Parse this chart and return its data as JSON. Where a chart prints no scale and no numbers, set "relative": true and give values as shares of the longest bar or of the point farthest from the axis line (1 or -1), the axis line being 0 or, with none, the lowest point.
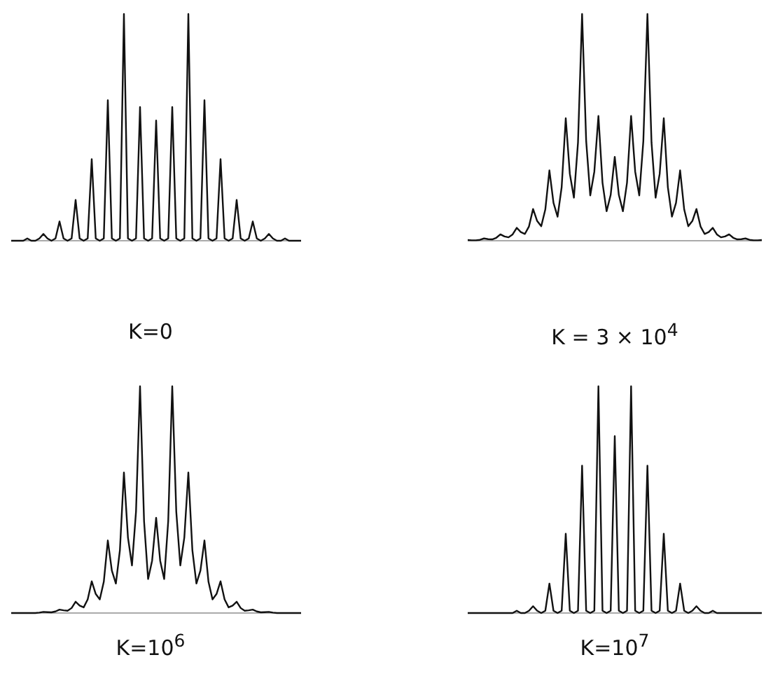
{
  "chart_data": [
    {
      "type": "line",
      "title": "K=0",
      "relative": true,
      "categories": [
        null,
        null,
        null,
        null,
        null,
        null,
        null,
        null,
        null,
        null,
        null,
        null,
        null,
        null,
        null,
        null,
        null,
        null,
        null,
        null,
        null,
        null,
        null,
        null,
        null,
        null,
        null,
        null,
        null,
        null,
        null,
        null,
        null,
        null,
        null,
        null,
        null,
        null,
        null,
        null,
        null,
        null,
        null,
        null,
        null,
        null,
        null,
        null,
        null,
        null,
        null,
        null,
        null,
        null,
        null,
        null,
        null,
        null,
        null,
        null,
        null,
        null,
        null,
        null,
        null,
        null,
        null,
        null,
        null,
        null,
        null,
        null,
        null
      ],
      "series": [
        {
          "color": "#111111",
          "values": [
            0,
            0,
            0,
            0,
            0.01,
            0,
            0,
            0.01,
            0.03,
            0.01,
            0,
            0.01,
            0.085,
            0.01,
            0,
            0.01,
            0.18,
            0.01,
            0,
            0.01,
            0.36,
            0.01,
            0,
            0.01,
            0.62,
            0.01,
            0,
            0.01,
            1,
            0.01,
            0,
            0.01,
            0.59,
            0.01,
            0,
            0.01,
            0.53,
            0.01,
            0,
            0.01,
            0.59,
            0.01,
            0,
            0.01,
            1,
            0.01,
            0,
            0.01,
            0.62,
            0.01,
            0,
            0.01,
            0.36,
            0.01,
            0,
            0.01,
            0.18,
            0.01,
            0,
            0.01,
            0.085,
            0.01,
            0,
            0.01,
            0.03,
            0.01,
            0,
            0,
            0.01,
            0,
            0,
            0,
            0
          ]
        }
      ]
    },
    {
      "type": "line",
      "title": "K = 3 × 10$^{4}$",
      "relative": true,
      "categories": [
        null,
        null,
        null,
        null,
        null,
        null,
        null,
        null,
        null,
        null,
        null,
        null,
        null,
        null,
        null,
        null,
        null,
        null,
        null,
        null,
        null,
        null,
        null,
        null,
        null,
        null,
        null,
        null,
        null,
        null,
        null,
        null,
        null,
        null,
        null,
        null,
        null,
        null,
        null,
        null,
        null,
        null,
        null,
        null,
        null,
        null,
        null,
        null,
        null,
        null,
        null,
        null,
        null,
        null,
        null,
        null,
        null,
        null,
        null,
        null,
        null,
        null,
        null,
        null,
        null,
        null,
        null,
        null,
        null,
        null,
        null,
        null,
        null
      ],
      "series": [
        {
          "color": "#111111",
          "values": [
            0.003,
            0.002,
            0.002,
            0.004,
            0.01,
            0.007,
            0.006,
            0.013,
            0.028,
            0.019,
            0.015,
            0.028,
            0.057,
            0.038,
            0.03,
            0.063,
            0.14,
            0.087,
            0.064,
            0.138,
            0.31,
            0.167,
            0.106,
            0.236,
            0.54,
            0.295,
            0.19,
            0.433,
            1,
            0.44,
            0.2,
            0.305,
            0.55,
            0.256,
            0.13,
            0.202,
            0.37,
            0.202,
            0.13,
            0.256,
            0.55,
            0.305,
            0.2,
            0.44,
            1,
            0.433,
            0.19,
            0.295,
            0.54,
            0.236,
            0.106,
            0.167,
            0.31,
            0.138,
            0.064,
            0.087,
            0.14,
            0.063,
            0.03,
            0.038,
            0.057,
            0.028,
            0.015,
            0.019,
            0.028,
            0.013,
            0.006,
            0.007,
            0.01,
            0.004,
            0.002,
            0.002,
            0.003
          ]
        }
      ]
    },
    {
      "type": "line",
      "title": "K=10$^{6}$",
      "relative": true,
      "categories": [
        null,
        null,
        null,
        null,
        null,
        null,
        null,
        null,
        null,
        null,
        null,
        null,
        null,
        null,
        null,
        null,
        null,
        null,
        null,
        null,
        null,
        null,
        null,
        null,
        null,
        null,
        null,
        null,
        null,
        null,
        null,
        null,
        null,
        null,
        null,
        null,
        null,
        null,
        null,
        null,
        null,
        null,
        null,
        null,
        null,
        null,
        null,
        null,
        null,
        null,
        null,
        null,
        null,
        null,
        null,
        null,
        null,
        null,
        null,
        null,
        null,
        null,
        null,
        null,
        null,
        null,
        null,
        null,
        null,
        null,
        null,
        null,
        null
      ],
      "series": [
        {
          "color": "#111111",
          "values": [
            0,
            0,
            0,
            0,
            0,
            0,
            0,
            0.002,
            0.005,
            0.004,
            0.003,
            0.007,
            0.015,
            0.012,
            0.01,
            0.022,
            0.05,
            0.033,
            0.025,
            0.06,
            0.14,
            0.084,
            0.06,
            0.138,
            0.32,
            0.187,
            0.13,
            0.277,
            0.62,
            0.333,
            0.21,
            0.447,
            1,
            0.405,
            0.15,
            0.231,
            0.42,
            0.231,
            0.15,
            0.405,
            1,
            0.447,
            0.21,
            0.333,
            0.62,
            0.277,
            0.13,
            0.187,
            0.32,
            0.138,
            0.06,
            0.084,
            0.14,
            0.06,
            0.025,
            0.033,
            0.05,
            0.022,
            0.01,
            0.012,
            0.015,
            0.007,
            0.003,
            0.004,
            0.005,
            0.002,
            0,
            0,
            0,
            0,
            0,
            0,
            0
          ]
        }
      ]
    },
    {
      "type": "line",
      "title": "K=10$^{7}$",
      "relative": true,
      "categories": [
        null,
        null,
        null,
        null,
        null,
        null,
        null,
        null,
        null,
        null,
        null,
        null,
        null,
        null,
        null,
        null,
        null,
        null,
        null,
        null,
        null,
        null,
        null,
        null,
        null,
        null,
        null,
        null,
        null,
        null,
        null,
        null,
        null,
        null,
        null,
        null,
        null,
        null,
        null,
        null,
        null,
        null,
        null,
        null,
        null,
        null,
        null,
        null,
        null,
        null,
        null,
        null,
        null,
        null,
        null,
        null,
        null,
        null,
        null,
        null,
        null,
        null,
        null,
        null,
        null,
        null,
        null,
        null,
        null,
        null,
        null,
        null,
        null
      ],
      "series": [
        {
          "color": "#111111",
          "values": [
            0,
            0,
            0,
            0,
            0,
            0,
            0,
            0,
            0,
            0,
            0,
            0,
            0.01,
            0,
            0,
            0.01,
            0.03,
            0.01,
            0,
            0.01,
            0.13,
            0.01,
            0,
            0.01,
            0.35,
            0.01,
            0,
            0.01,
            0.65,
            0.01,
            0,
            0.01,
            1,
            0.01,
            0,
            0.01,
            0.78,
            0.01,
            0,
            0.01,
            1,
            0.01,
            0,
            0.01,
            0.65,
            0.01,
            0,
            0.01,
            0.35,
            0.01,
            0,
            0.01,
            0.13,
            0.01,
            0,
            0.01,
            0.03,
            0.01,
            0,
            0,
            0.01,
            0,
            0,
            0,
            0,
            0,
            0,
            0,
            0,
            0,
            0,
            0,
            0
          ]
        }
      ]
    }
  ]
}
